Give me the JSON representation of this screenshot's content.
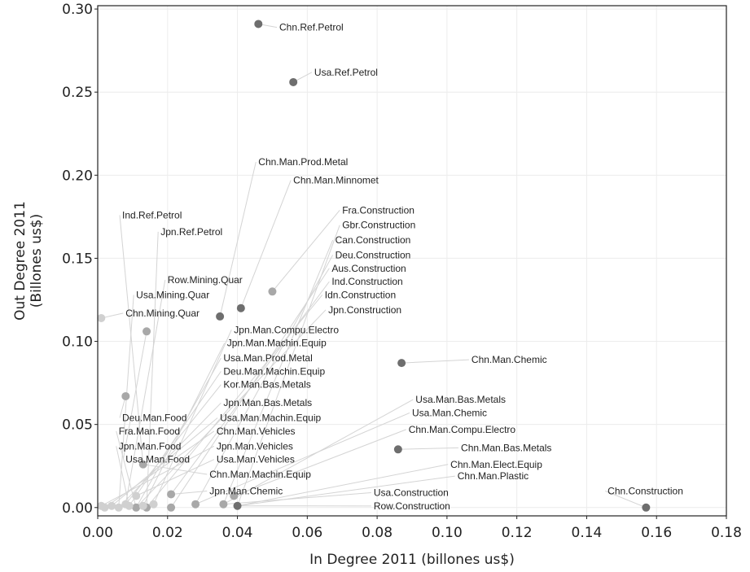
{
  "chart_data": {
    "type": "scatter",
    "title": "",
    "xlabel": "In Degree 2011 (billones us$)",
    "ylabel_lines": [
      "Out Degree 2011",
      "(Billones us$)"
    ],
    "xlim": [
      0,
      0.18
    ],
    "ylim": [
      -0.005,
      0.302
    ],
    "xticks": [
      0,
      0.02,
      0.04,
      0.06,
      0.08,
      0.1,
      0.12,
      0.14,
      0.16,
      0.18
    ],
    "xtick_labels": [
      "0.00",
      "0.02",
      "0.04",
      "0.06",
      "0.08",
      "0.10",
      "0.12",
      "0.14",
      "0.16",
      "0.18"
    ],
    "yticks": [
      0,
      0.05,
      0.1,
      0.15,
      0.2,
      0.25,
      0.3
    ],
    "ytick_labels": [
      "0.00",
      "0.05",
      "0.10",
      "0.15",
      "0.20",
      "0.25",
      "0.30"
    ],
    "grid": true,
    "point_colors": {
      "dark": "#6e6e6e",
      "mid": "#a8a8a8",
      "light": "#d0d0d0"
    },
    "points": [
      {
        "x": 0.046,
        "y": 0.291,
        "shade": "dark"
      },
      {
        "x": 0.056,
        "y": 0.256,
        "shade": "dark"
      },
      {
        "x": 0.041,
        "y": 0.12,
        "shade": "dark"
      },
      {
        "x": 0.05,
        "y": 0.13,
        "shade": "mid"
      },
      {
        "x": 0.035,
        "y": 0.115,
        "shade": "dark"
      },
      {
        "x": 0.014,
        "y": 0.106,
        "shade": "mid"
      },
      {
        "x": 0.001,
        "y": 0.114,
        "shade": "light"
      },
      {
        "x": 0.008,
        "y": 0.067,
        "shade": "mid"
      },
      {
        "x": 0.087,
        "y": 0.087,
        "shade": "dark"
      },
      {
        "x": 0.086,
        "y": 0.035,
        "shade": "dark"
      },
      {
        "x": 0.157,
        "y": 0.0,
        "shade": "dark"
      },
      {
        "x": 0.013,
        "y": 0.026,
        "shade": "mid"
      },
      {
        "x": 0.021,
        "y": 0.008,
        "shade": "mid"
      },
      {
        "x": 0.039,
        "y": 0.007,
        "shade": "mid"
      },
      {
        "x": 0.011,
        "y": 0.007,
        "shade": "light"
      },
      {
        "x": 0.028,
        "y": 0.002,
        "shade": "mid"
      },
      {
        "x": 0.036,
        "y": 0.002,
        "shade": "mid"
      },
      {
        "x": 0.04,
        "y": 0.001,
        "shade": "dark"
      },
      {
        "x": 0.021,
        "y": 0.0,
        "shade": "mid"
      },
      {
        "x": 0.014,
        "y": 0.0,
        "shade": "mid"
      },
      {
        "x": 0.011,
        "y": 0.0,
        "shade": "mid"
      },
      {
        "x": 0.008,
        "y": 0.002,
        "shade": "light"
      },
      {
        "x": 0.006,
        "y": 0.0,
        "shade": "light"
      },
      {
        "x": 0.004,
        "y": 0.001,
        "shade": "light"
      },
      {
        "x": 0.002,
        "y": 0.0,
        "shade": "light"
      },
      {
        "x": 0.001,
        "y": 0.001,
        "shade": "light"
      },
      {
        "x": 0.009,
        "y": 0.001,
        "shade": "light"
      },
      {
        "x": 0.013,
        "y": 0.001,
        "shade": "light"
      },
      {
        "x": 0.016,
        "y": 0.002,
        "shade": "light"
      }
    ],
    "labels": [
      {
        "text": "Chn.Ref.Petrol",
        "x": 0.052,
        "y": 0.287,
        "px": 0.046,
        "py": 0.291
      },
      {
        "text": "Usa.Ref.Petrol",
        "x": 0.062,
        "y": 0.26,
        "px": 0.056,
        "py": 0.256
      },
      {
        "text": "Chn.Man.Prod.Metal",
        "x": 0.046,
        "y": 0.206,
        "px": 0.035,
        "py": 0.115
      },
      {
        "text": "Chn.Man.Minnomet",
        "x": 0.056,
        "y": 0.195,
        "px": 0.041,
        "py": 0.12
      },
      {
        "text": "Ind.Ref.Petrol",
        "x": 0.007,
        "y": 0.174,
        "px": 0.013,
        "py": 0.026
      },
      {
        "text": "Jpn.Ref.Petrol",
        "x": 0.018,
        "y": 0.164,
        "px": 0.014,
        "py": 0.0
      },
      {
        "text": "Fra.Construction",
        "x": 0.07,
        "y": 0.177,
        "px": 0.05,
        "py": 0.13
      },
      {
        "text": "Gbr.Construction",
        "x": 0.07,
        "y": 0.168,
        "px": 0.04,
        "py": 0.001
      },
      {
        "text": "Can.Construction",
        "x": 0.068,
        "y": 0.159,
        "px": 0.036,
        "py": 0.002
      },
      {
        "text": "Deu.Construction",
        "x": 0.068,
        "y": 0.15,
        "px": 0.028,
        "py": 0.002
      },
      {
        "text": "Aus.Construction",
        "x": 0.067,
        "y": 0.142,
        "px": 0.021,
        "py": 0.0
      },
      {
        "text": "Ind.Construction",
        "x": 0.067,
        "y": 0.134,
        "px": 0.021,
        "py": 0.008
      },
      {
        "text": "Idn.Construction",
        "x": 0.065,
        "y": 0.126,
        "px": 0.014,
        "py": 0.0
      },
      {
        "text": "Jpn.Construction",
        "x": 0.066,
        "y": 0.117,
        "px": 0.011,
        "py": 0.0
      },
      {
        "text": "Row.Mining.Quar",
        "x": 0.02,
        "y": 0.135,
        "px": 0.008,
        "py": 0.002
      },
      {
        "text": "Usa.Mining.Quar",
        "x": 0.011,
        "y": 0.126,
        "px": 0.006,
        "py": 0.0
      },
      {
        "text": "Chn.Mining.Quar",
        "x": 0.008,
        "y": 0.115,
        "px": 0.001,
        "py": 0.114
      },
      {
        "text": "Jpn.Man.Compu.Electro",
        "x": 0.039,
        "y": 0.105,
        "px": 0.016,
        "py": 0.002
      },
      {
        "text": "Jpn.Man.Machin.Equip",
        "x": 0.037,
        "y": 0.097,
        "px": 0.013,
        "py": 0.001
      },
      {
        "text": "Usa.Man.Prod.Metal",
        "x": 0.036,
        "y": 0.088,
        "px": 0.011,
        "py": 0.0
      },
      {
        "text": "Deu.Man.Machin.Equip",
        "x": 0.036,
        "y": 0.08,
        "px": 0.009,
        "py": 0.001
      },
      {
        "text": "Kor.Man.Bas.Metals",
        "x": 0.036,
        "y": 0.072,
        "px": 0.008,
        "py": 0.002
      },
      {
        "text": "Jpn.Man.Bas.Metals",
        "x": 0.036,
        "y": 0.061,
        "px": 0.006,
        "py": 0.0
      },
      {
        "text": "Usa.Man.Machin.Equip",
        "x": 0.035,
        "y": 0.052,
        "px": 0.004,
        "py": 0.001
      },
      {
        "text": "Chn.Man.Vehicles",
        "x": 0.034,
        "y": 0.044,
        "px": 0.002,
        "py": 0.0
      },
      {
        "text": "Jpn.Man.Vehicles",
        "x": 0.034,
        "y": 0.035,
        "px": 0.001,
        "py": 0.001
      },
      {
        "text": "Usa.Man.Vehicles",
        "x": 0.034,
        "y": 0.027,
        "px": 0.011,
        "py": 0.007
      },
      {
        "text": "Chn.Man.Machin.Equip",
        "x": 0.032,
        "y": 0.018,
        "px": 0.013,
        "py": 0.026
      },
      {
        "text": "Jpn.Man.Chemic",
        "x": 0.032,
        "y": 0.008,
        "px": 0.021,
        "py": 0.008
      },
      {
        "text": "Deu.Man.Food",
        "x": 0.007,
        "y": 0.052,
        "px": 0.008,
        "py": 0.067
      },
      {
        "text": "Fra.Man.Food",
        "x": 0.006,
        "y": 0.044,
        "px": 0.011,
        "py": 0.0
      },
      {
        "text": "Jpn.Man.Food",
        "x": 0.006,
        "y": 0.035,
        "px": 0.009,
        "py": 0.001
      },
      {
        "text": "Usa.Man.Food",
        "x": 0.008,
        "y": 0.027,
        "px": 0.014,
        "py": 0.106
      },
      {
        "text": "Chn.Man.Chemic",
        "x": 0.107,
        "y": 0.087,
        "px": 0.087,
        "py": 0.087
      },
      {
        "text": "Usa.Man.Bas.Metals",
        "x": 0.091,
        "y": 0.063,
        "px": 0.036,
        "py": 0.002
      },
      {
        "text": "Usa.Man.Chemic",
        "x": 0.09,
        "y": 0.055,
        "px": 0.028,
        "py": 0.002
      },
      {
        "text": "Chn.Man.Compu.Electro",
        "x": 0.089,
        "y": 0.045,
        "px": 0.039,
        "py": 0.007
      },
      {
        "text": "Chn.Man.Bas.Metals",
        "x": 0.104,
        "y": 0.034,
        "px": 0.086,
        "py": 0.035
      },
      {
        "text": "Chn.Man.Elect.Equip",
        "x": 0.101,
        "y": 0.024,
        "px": 0.04,
        "py": 0.001
      },
      {
        "text": "Chn.Man.Plastic",
        "x": 0.103,
        "y": 0.017,
        "px": 0.04,
        "py": 0.001
      },
      {
        "text": "Chn.Construction",
        "x": 0.146,
        "y": 0.008,
        "px": 0.157,
        "py": 0.0
      },
      {
        "text": "Usa.Construction",
        "x": 0.079,
        "y": 0.007,
        "px": 0.036,
        "py": 0.002
      },
      {
        "text": "Row.Construction",
        "x": 0.079,
        "y": -0.001,
        "px": 0.04,
        "py": 0.001
      }
    ]
  }
}
